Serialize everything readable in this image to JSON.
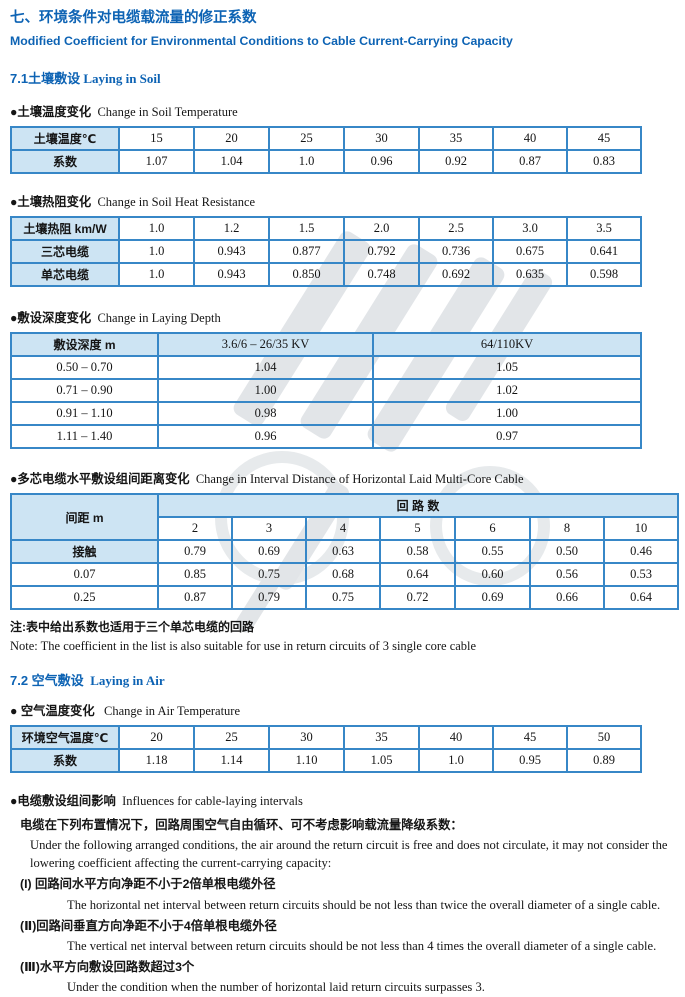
{
  "accent": {
    "heading_blue": "#0d63b4",
    "table_border": "#3787c7",
    "table_header_fill": "#cde4f3"
  },
  "header": {
    "title_cn": "七、环境条件对电缆载流量的修正系数",
    "title_en": "Modified Coefficient for Environmental Conditions to Cable Current-Carrying Capacity"
  },
  "soil": {
    "section_heading": {
      "cn": "7.1土壤敷设",
      "en": "Laying in Soil"
    },
    "soil_temp_label": {
      "cn": "●土壤温度变化",
      "en": "Change in Soil Temperature"
    },
    "heat_res_label": {
      "cn": "●土壤热阻变化",
      "en": "Change in Soil Heat Resistance"
    },
    "depth_label": {
      "cn": "●敷设深度变化",
      "en": "Change in Laying Depth"
    },
    "interval_label": {
      "cn": "●多芯电缆水平敷设组间距离变化",
      "en": "Change in Interval Distance of  Horizontal Laid Multi-Core Cable"
    },
    "note_cn": "注:表中给出系数也适用于三个单芯电缆的回路",
    "note_en": "Note: The coefficient in the list is also suitable for use in return circuits of 3 single core cable"
  },
  "air": {
    "section_heading": {
      "cn": "7.2 空气敷设",
      "en": "Laying in Air"
    },
    "air_temp_label": {
      "cn": "● 空气温度变化",
      "en": "Change in Air Temperature"
    },
    "influence_label": {
      "cn": "●电缆敷设组间影响",
      "en": "Influences for cable-laying intervals"
    },
    "paragraphs": [
      {
        "text": "电缆在下列布置情况下，回路周围空气自由循环、可不考虑影响载流量降级系数：",
        "lang": "cn",
        "ind": "a"
      },
      {
        "text": "Under the following arranged conditions, the air around the return circuit is free and does not circulate, it may not consider the lowering coefficient affecting the current-carrying capacity:",
        "lang": "en",
        "ind": "b"
      },
      {
        "text": "(I) 回路间水平方向净距不小于2倍单根电缆外径",
        "lang": "cn",
        "ind": "a"
      },
      {
        "text": "The horizontal net interval between return circuits should be not less than twice the overall diameter of a single cable.",
        "lang": "en",
        "ind": "c"
      },
      {
        "text": "(Ⅱ)回路间垂直方向净距不小于4倍单根电缆外径",
        "lang": "cn",
        "ind": "a"
      },
      {
        "text": "The vertical net interval between return circuits should be not less than 4 times the overall diameter of a single cable.",
        "lang": "en",
        "ind": "c"
      },
      {
        "text": "(Ⅲ)水平方向敷设回路数超过3个",
        "lang": "cn",
        "ind": "a"
      },
      {
        "text": "Under the condition when the number of horizontal laid return circuits surpasses 3.",
        "lang": "en",
        "ind": "c"
      }
    ]
  },
  "tables": {
    "soil_temp": {
      "cols": [
        108,
        75,
        75,
        75,
        75,
        74,
        74,
        74
      ],
      "rows": [
        [
          {
            "t": "土壤温度℃",
            "h": 1,
            "cn": 1
          },
          "15",
          "20",
          "25",
          "30",
          "35",
          "40",
          "45"
        ],
        [
          {
            "t": "系数",
            "h": 1,
            "cn": 1
          },
          "1.07",
          "1.04",
          "1.0",
          "0.96",
          "0.92",
          "0.87",
          "0.83"
        ]
      ]
    },
    "heat_res": {
      "cols": [
        108,
        75,
        75,
        75,
        75,
        74,
        74,
        74
      ],
      "rows": [
        [
          {
            "t": "土壤热阻  km/W",
            "h": 1,
            "cn": 1
          },
          "1.0",
          "1.2",
          "1.5",
          "2.0",
          "2.5",
          "3.0",
          "3.5"
        ],
        [
          {
            "t": "三芯电缆",
            "h": 1,
            "cn": 1
          },
          "1.0",
          "0.943",
          "0.877",
          "0.792",
          "0.736",
          "0.675",
          "0.641"
        ],
        [
          {
            "t": "单芯电缆",
            "h": 1,
            "cn": 1
          },
          "1.0",
          "0.943",
          "0.850",
          "0.748",
          "0.692",
          "0.635",
          "0.598"
        ]
      ]
    },
    "depth": {
      "cols": [
        147,
        215,
        268
      ],
      "rows": [
        [
          {
            "t": "敷设深度  m",
            "h": 1,
            "cn": 1
          },
          {
            "t": "3.6/6 – 26/35 KV",
            "h": 1
          },
          {
            "t": "64/110KV",
            "h": 1
          }
        ],
        [
          "0.50 – 0.70",
          "1.04",
          "1.05"
        ],
        [
          "0.71 – 0.90",
          "1.00",
          "1.02"
        ],
        [
          "0.91 – 1.10",
          "0.98",
          "1.00"
        ],
        [
          "1.11 – 1.40",
          "0.96",
          "0.97"
        ]
      ]
    },
    "interval": {
      "cols": [
        147,
        74,
        74,
        74,
        75,
        75,
        74,
        74
      ],
      "rows": [
        [
          {
            "t": "间距  m",
            "h": 1,
            "cn": 1,
            "rowspan": 2
          },
          {
            "t": "回  路  数",
            "h": 1,
            "cn": 1,
            "colspan": 7
          }
        ],
        [
          "2",
          "3",
          "4",
          "5",
          "6",
          "8",
          "10"
        ],
        [
          {
            "t": "接触",
            "h": 1,
            "cn": 1
          },
          "0.79",
          "0.69",
          "0.63",
          "0.58",
          "0.55",
          "0.50",
          "0.46"
        ],
        [
          "0.07",
          "0.85",
          "0.75",
          "0.68",
          "0.64",
          "0.60",
          "0.56",
          "0.53"
        ],
        [
          "0.25",
          "0.87",
          "0.79",
          "0.75",
          "0.72",
          "0.69",
          "0.66",
          "0.64"
        ]
      ]
    },
    "air_temp": {
      "cols": [
        108,
        75,
        75,
        75,
        75,
        74,
        74,
        74
      ],
      "rows": [
        [
          {
            "t": "环境空气温度℃",
            "h": 1,
            "cn": 1
          },
          "20",
          "25",
          "30",
          "35",
          "40",
          "45",
          "50"
        ],
        [
          {
            "t": "系数",
            "h": 1,
            "cn": 1
          },
          "1.18",
          "1.14",
          "1.10",
          "1.05",
          "1.0",
          "0.95",
          "0.89"
        ]
      ]
    }
  }
}
